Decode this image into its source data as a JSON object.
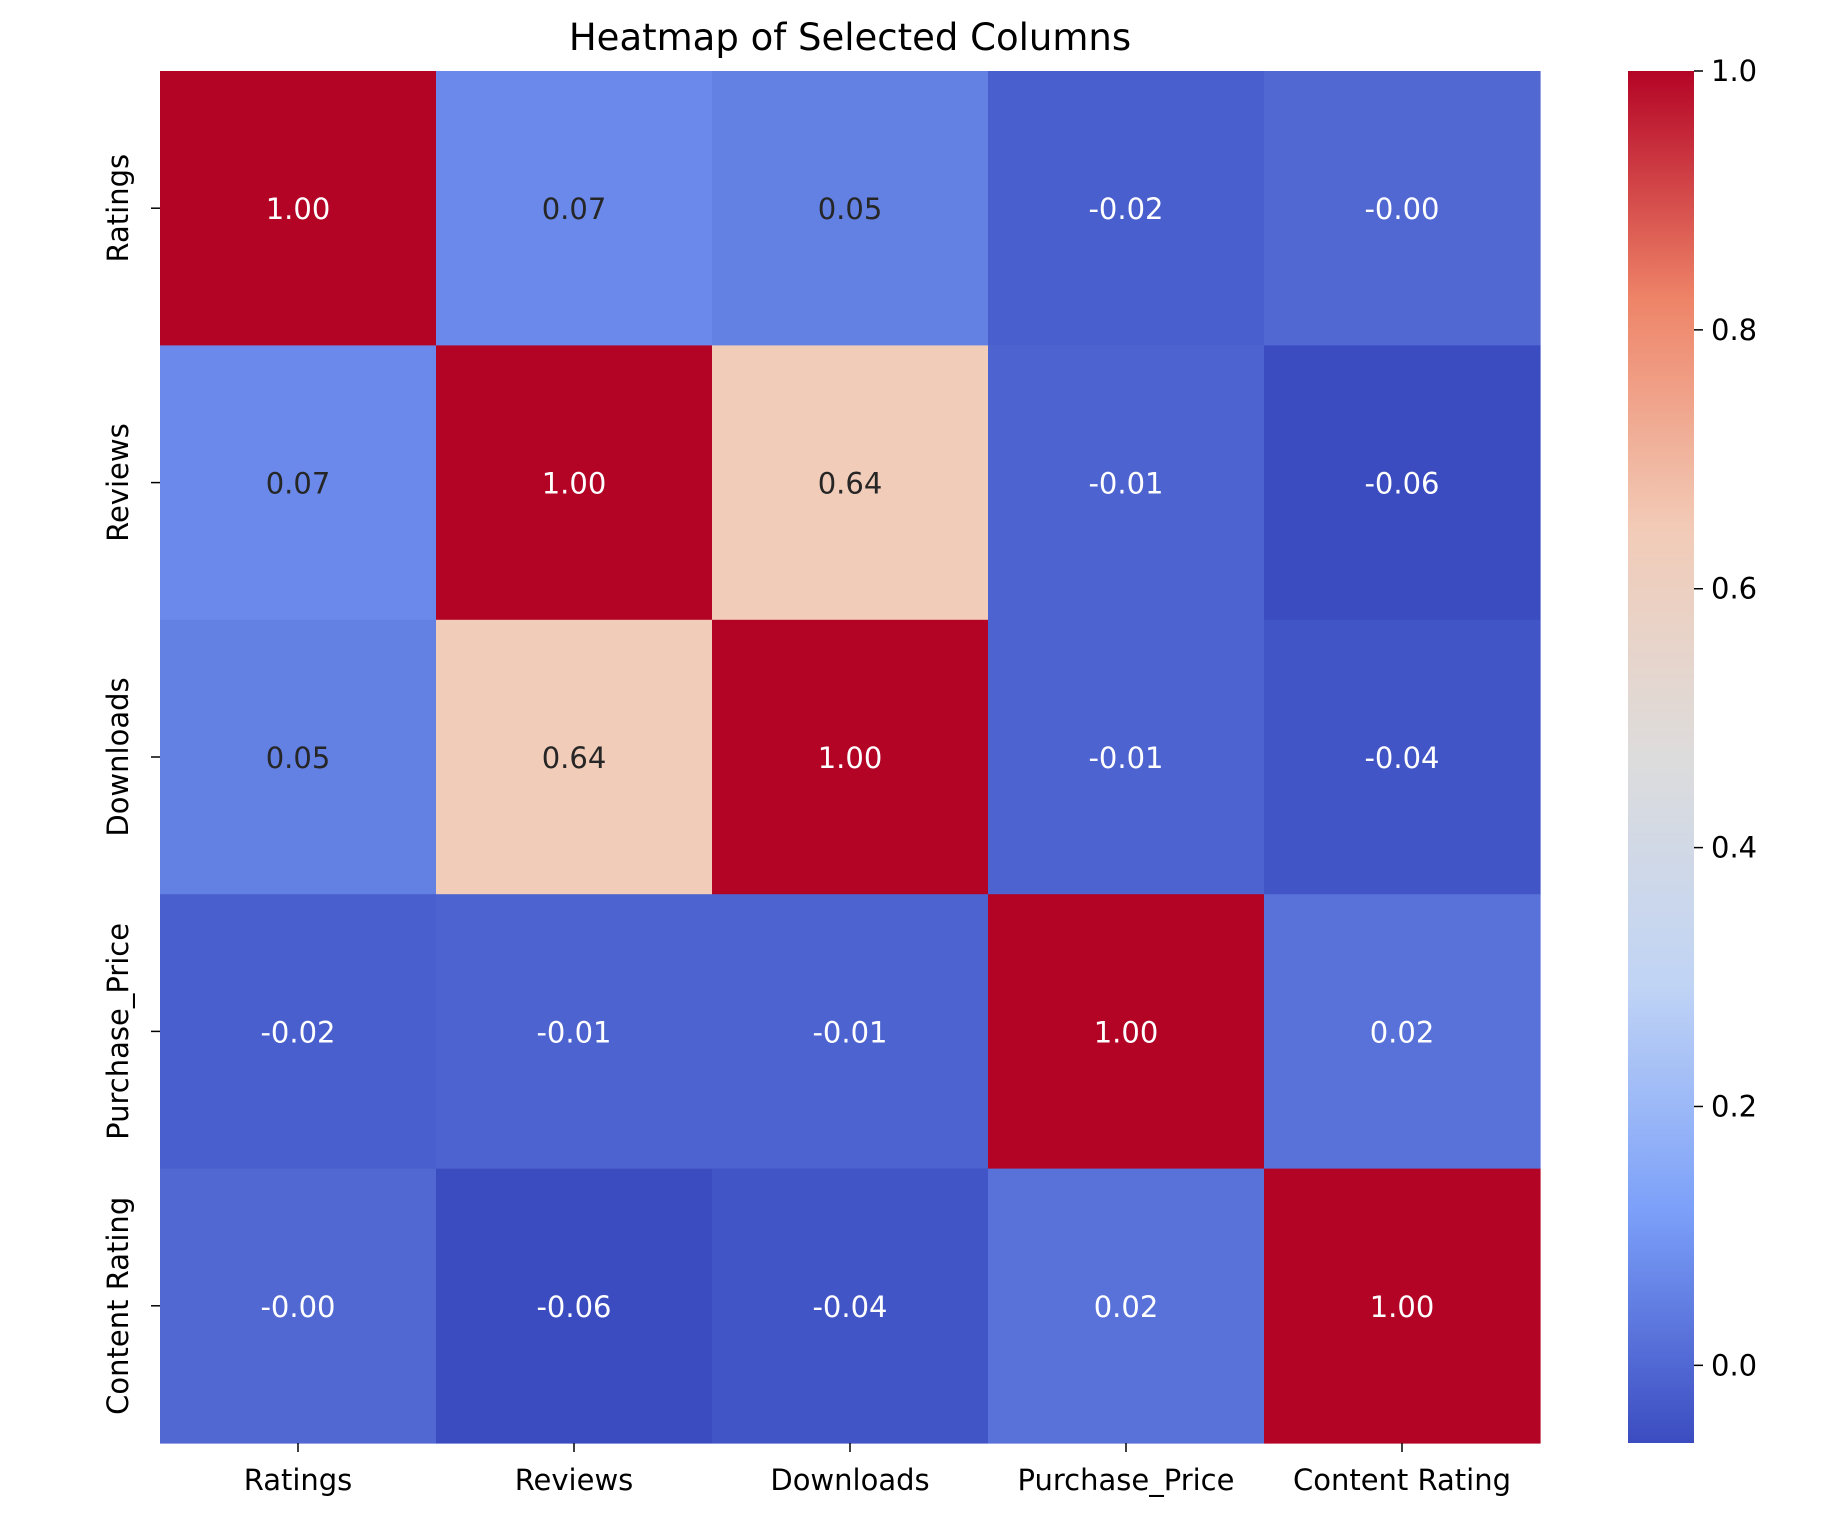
{
  "chart_data": {
    "type": "heatmap",
    "title": "Heatmap of Selected Columns",
    "xlabel": "",
    "ylabel": "",
    "x_categories": [
      "Ratings",
      "Reviews",
      "Downloads",
      "Purchase_Price",
      "Content Rating"
    ],
    "y_categories": [
      "Ratings",
      "Reviews",
      "Downloads",
      "Purchase_Price",
      "Content Rating"
    ],
    "values": [
      [
        1.0,
        0.07,
        0.05,
        -0.02,
        -0.0
      ],
      [
        0.07,
        1.0,
        0.64,
        -0.01,
        -0.06
      ],
      [
        0.05,
        0.64,
        1.0,
        -0.01,
        -0.04
      ],
      [
        -0.02,
        -0.01,
        -0.01,
        1.0,
        0.02
      ],
      [
        -0.0,
        -0.06,
        -0.04,
        0.02,
        1.0
      ]
    ],
    "value_labels": [
      [
        "1.00",
        "0.07",
        "0.05",
        "-0.02",
        "-0.00"
      ],
      [
        "0.07",
        "1.00",
        "0.64",
        "-0.01",
        "-0.06"
      ],
      [
        "0.05",
        "0.64",
        "1.00",
        "-0.01",
        "-0.04"
      ],
      [
        "-0.02",
        "-0.01",
        "-0.01",
        "1.00",
        "0.02"
      ],
      [
        "-0.00",
        "-0.06",
        "-0.04",
        "0.02",
        "1.00"
      ]
    ],
    "colormap": "coolwarm",
    "colorbar": {
      "vmin": -0.06,
      "vmax": 1.0,
      "ticks": [
        0.0,
        0.2,
        0.4,
        0.6,
        0.8,
        1.0
      ],
      "tick_labels": [
        "0.0",
        "0.2",
        "0.4",
        "0.6",
        "0.8",
        "1.0"
      ],
      "colors": [
        "#3b4cc0",
        "#7b9ff9",
        "#c0d4f5",
        "#dddcdc",
        "#f2cbb7",
        "#ee8468",
        "#b40426"
      ]
    },
    "text_colors": {
      "light": "#ffffff",
      "dark": "#262626"
    },
    "axis_color": "#000000",
    "grid": false,
    "legend": "colorbar-right"
  }
}
